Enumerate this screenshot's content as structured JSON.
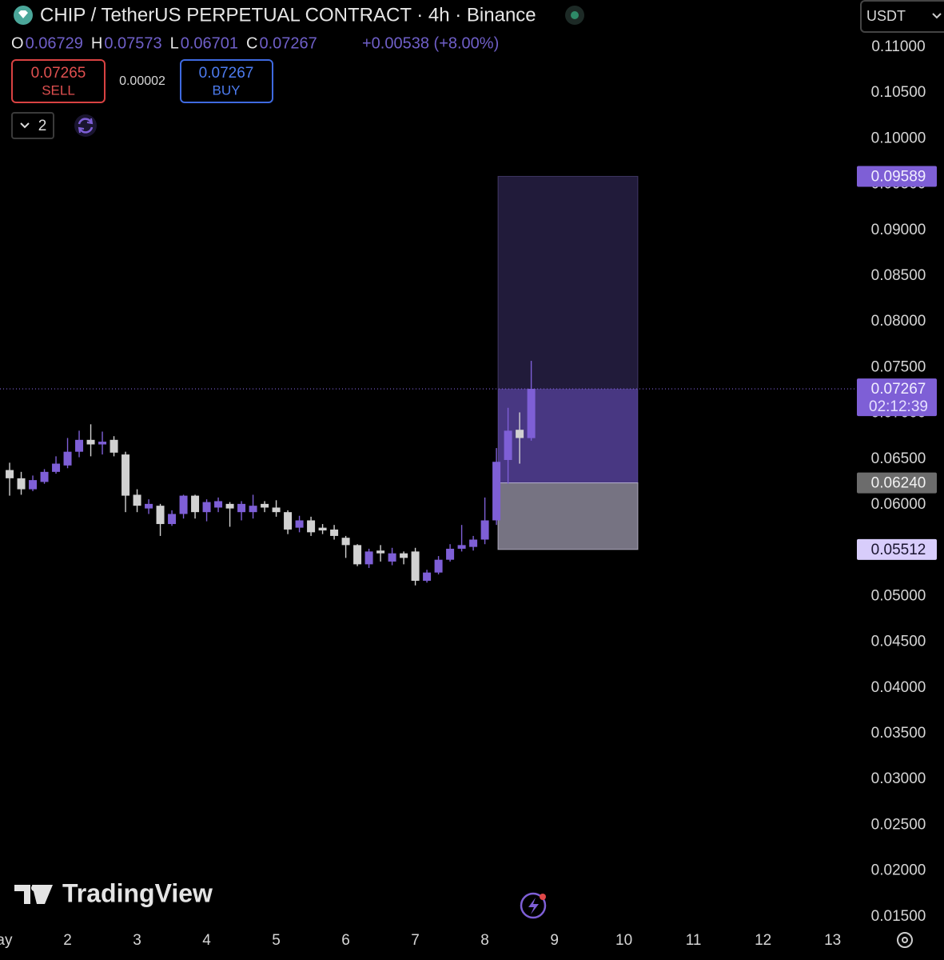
{
  "header": {
    "title": "CHIP / TetherUS PERPETUAL CONTRACT · 4h · Binance",
    "change": "+0.00538 (+8.00%)"
  },
  "trade_panel": {
    "sell_price": "0.07265",
    "sell": "SELL",
    "spread": "0.00002",
    "buy_price": "0.07267",
    "buy": "BUY"
  },
  "indicators": {
    "count": "2"
  },
  "currency": "USDT",
  "branding": "TradingView",
  "chart_data": {
    "type": "candlestick",
    "title": "CHIP / TetherUS PERPETUAL CONTRACT · 4h · Binance",
    "ohlc_labels": [
      "O",
      "H",
      "L",
      "C"
    ],
    "up_color": "#7e5fd6",
    "down_color": "#d1d1d1",
    "open": [
      0.0638,
      0.0629,
      0.0617,
      0.0625,
      0.0636,
      0.0643,
      0.0658,
      0.0671,
      0.0666,
      0.0671,
      0.0655,
      0.0611,
      0.0596,
      0.0599,
      0.0579,
      0.059,
      0.061,
      0.0592,
      0.0597,
      0.0601,
      0.0592,
      0.0592,
      0.0601,
      0.0597,
      0.0592,
      0.0575,
      0.0583,
      0.0575,
      0.0573,
      0.0564,
      0.0556,
      0.0535,
      0.055,
      0.0538,
      0.0547,
      0.0549,
      0.0517,
      0.0526,
      0.054,
      0.0552,
      0.0554,
      0.0562,
      0.0583,
      0.0649,
      0.0682,
      0.06729
    ],
    "high": [
      0.0646,
      0.0636,
      0.0632,
      0.0639,
      0.0653,
      0.0673,
      0.0681,
      0.0688,
      0.068,
      0.0675,
      0.0658,
      0.0617,
      0.0606,
      0.0601,
      0.0594,
      0.0611,
      0.0611,
      0.0606,
      0.0608,
      0.0603,
      0.0604,
      0.0611,
      0.0604,
      0.0605,
      0.0594,
      0.0588,
      0.0587,
      0.0579,
      0.0578,
      0.0566,
      0.0557,
      0.0552,
      0.0556,
      0.0553,
      0.0549,
      0.0553,
      0.0529,
      0.0544,
      0.0557,
      0.0578,
      0.0566,
      0.0608,
      0.0662,
      0.0706,
      0.0701,
      0.07573
    ],
    "low": [
      0.061,
      0.0611,
      0.0615,
      0.0623,
      0.0634,
      0.064,
      0.0652,
      0.0653,
      0.0655,
      0.0653,
      0.0592,
      0.0592,
      0.059,
      0.0566,
      0.0577,
      0.0585,
      0.0585,
      0.0582,
      0.0592,
      0.0576,
      0.0583,
      0.0585,
      0.0592,
      0.0587,
      0.0568,
      0.057,
      0.0566,
      0.0568,
      0.0562,
      0.0542,
      0.0533,
      0.0531,
      0.0538,
      0.0534,
      0.0535,
      0.0512,
      0.0515,
      0.0524,
      0.0538,
      0.0549,
      0.055,
      0.0557,
      0.0578,
      0.0623,
      0.0645,
      0.06701
    ],
    "close": [
      0.0629,
      0.0617,
      0.0627,
      0.0636,
      0.0645,
      0.0658,
      0.0671,
      0.0666,
      0.0669,
      0.0657,
      0.061,
      0.0599,
      0.0601,
      0.0579,
      0.059,
      0.061,
      0.0592,
      0.0603,
      0.0604,
      0.0596,
      0.0601,
      0.0599,
      0.0597,
      0.0592,
      0.0573,
      0.0583,
      0.057,
      0.0572,
      0.0566,
      0.0556,
      0.0535,
      0.0549,
      0.0547,
      0.0547,
      0.0542,
      0.0517,
      0.0526,
      0.054,
      0.0552,
      0.0556,
      0.0562,
      0.0583,
      0.0647,
      0.0681,
      0.0673,
      0.07267
    ],
    "ylim": [
      0.01376,
      0.11516
    ],
    "yticks": [
      {
        "value": 0.11,
        "label": "0.11000"
      },
      {
        "value": 0.105,
        "label": "0.10500"
      },
      {
        "value": 0.1,
        "label": "0.10000"
      },
      {
        "value": 0.095,
        "label": "0.09500"
      },
      {
        "value": 0.09,
        "label": "0.09000"
      },
      {
        "value": 0.085,
        "label": "0.08500"
      },
      {
        "value": 0.08,
        "label": "0.08000"
      },
      {
        "value": 0.075,
        "label": "0.07500"
      },
      {
        "value": 0.07,
        "label": "0.07000"
      },
      {
        "value": 0.065,
        "label": "0.06500"
      },
      {
        "value": 0.06,
        "label": "0.06000"
      },
      {
        "value": 0.055,
        "label": "0.05500"
      },
      {
        "value": 0.05,
        "label": "0.05000"
      },
      {
        "value": 0.045,
        "label": "0.04500"
      },
      {
        "value": 0.04,
        "label": "0.04000"
      },
      {
        "value": 0.035,
        "label": "0.03500"
      },
      {
        "value": 0.03,
        "label": "0.03000"
      },
      {
        "value": 0.025,
        "label": "0.02500"
      },
      {
        "value": 0.02,
        "label": "0.02000"
      },
      {
        "value": 0.015,
        "label": "0.01500"
      }
    ],
    "xlim": [
      -0.83,
      73.3
    ],
    "xticks": [
      {
        "value": -1,
        "label": "May"
      },
      {
        "value": 5,
        "label": "2"
      },
      {
        "value": 11,
        "label": "3"
      },
      {
        "value": 17,
        "label": "4"
      },
      {
        "value": 23,
        "label": "5"
      },
      {
        "value": 29,
        "label": "6"
      },
      {
        "value": 35,
        "label": "7"
      },
      {
        "value": 41,
        "label": "8"
      },
      {
        "value": 47,
        "label": "9"
      },
      {
        "value": 53,
        "label": "10"
      },
      {
        "value": 59,
        "label": "11"
      },
      {
        "value": 65,
        "label": "12"
      },
      {
        "value": 71,
        "label": "13"
      }
    ],
    "grid": false,
    "last_price": {
      "value": 0.07267,
      "label": "0.07267"
    },
    "countdown": "02:12:39",
    "position": {
      "target": {
        "value": 0.09589,
        "label": "0.09589"
      },
      "entry": {
        "value": 0.0624,
        "label": "0.06240"
      },
      "stop": {
        "value": 0.05512,
        "label": "0.05512"
      }
    }
  }
}
